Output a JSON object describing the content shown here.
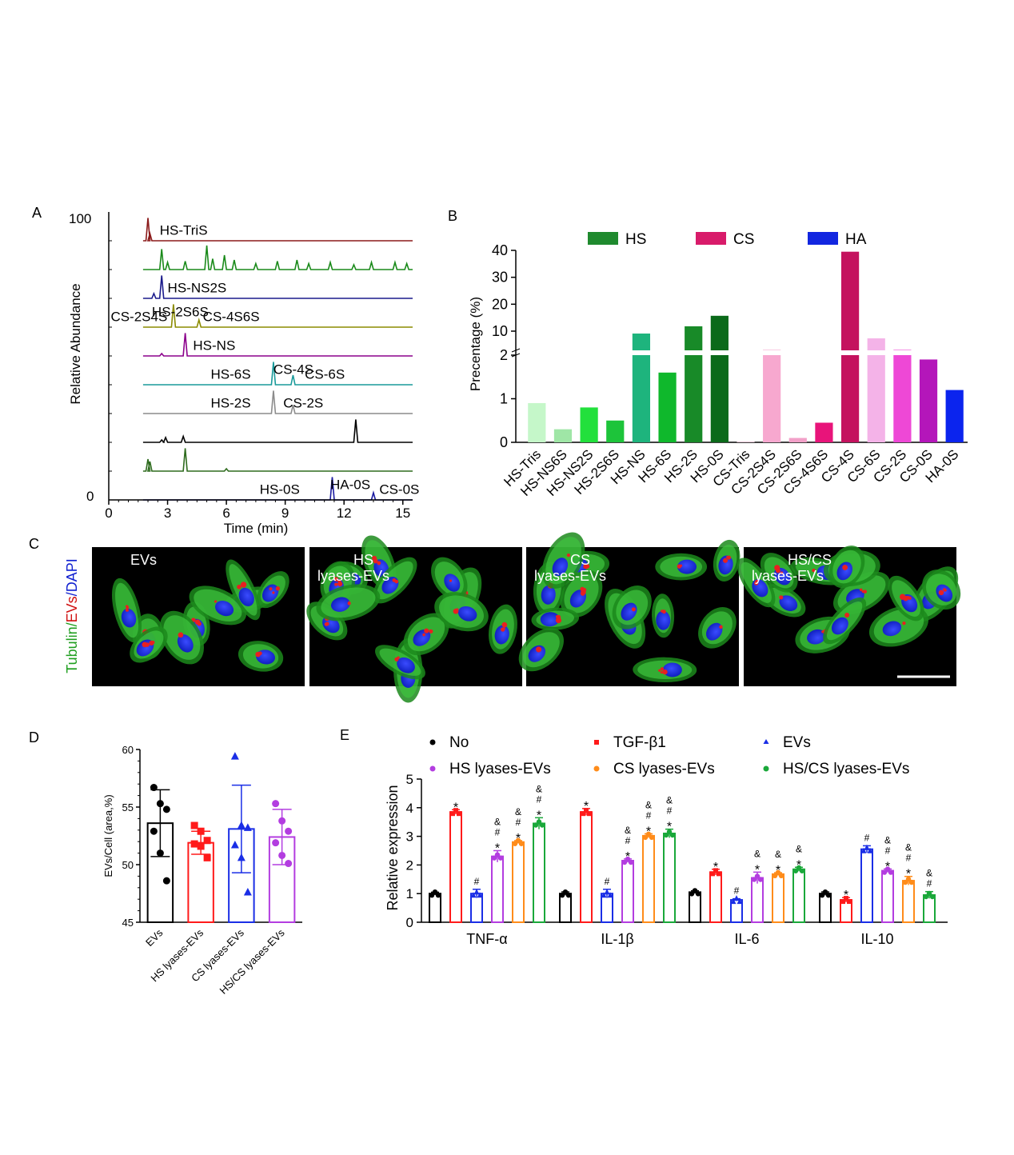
{
  "panels": {
    "A": {
      "label": "A",
      "chart_data": {
        "type": "line",
        "title": "",
        "xlabel": "Time (min)",
        "ylabel": "Relative Abundance",
        "xlim": [
          0,
          15.5
        ],
        "x_ticks": [
          "0",
          "3",
          "6",
          "9",
          "12",
          "15"
        ],
        "y_ticks": [
          "100",
          "0"
        ],
        "traces": [
          {
            "color": "#8b1a1a",
            "peaks": [
              {
                "x": 2.0,
                "h": 0.95
              },
              {
                "x": 2.1,
                "h": 0.3
              }
            ],
            "labels": [
              {
                "text": "HS-TriS",
                "x": 2.6,
                "pos": "right"
              }
            ]
          },
          {
            "color": "#1a8a1a",
            "peaks": [
              {
                "x": 2.7,
                "h": 0.85
              },
              {
                "x": 3.0,
                "h": 0.3
              },
              {
                "x": 3.9,
                "h": 0.35
              },
              {
                "x": 5.0,
                "h": 1.0
              },
              {
                "x": 5.3,
                "h": 0.45
              },
              {
                "x": 5.9,
                "h": 0.6
              },
              {
                "x": 6.4,
                "h": 0.4
              },
              {
                "x": 7.5,
                "h": 0.25
              },
              {
                "x": 8.6,
                "h": 0.35
              },
              {
                "x": 9.6,
                "h": 0.4
              },
              {
                "x": 10.2,
                "h": 0.25
              },
              {
                "x": 11.3,
                "h": 0.3
              },
              {
                "x": 12.5,
                "h": 0.2
              },
              {
                "x": 13.4,
                "h": 0.3
              },
              {
                "x": 14.6,
                "h": 0.3
              },
              {
                "x": 15.2,
                "h": 0.25
              }
            ],
            "labels": []
          },
          {
            "color": "#1a1a8b",
            "peaks": [
              {
                "x": 2.7,
                "h": 0.95
              },
              {
                "x": 2.3,
                "h": 0.2
              }
            ],
            "labels": [
              {
                "text": "HS-NS2S",
                "x": 3.0,
                "pos": "right"
              }
            ]
          },
          {
            "color": "#8b8b00",
            "peaks": [
              {
                "x": 3.3,
                "h": 0.95
              },
              {
                "x": 4.6,
                "h": 0.3
              }
            ],
            "labels": [
              {
                "text": "HS-2S6S",
                "x": 2.2,
                "pos": "above"
              },
              {
                "text": "CS-2S4S",
                "x": 0.1,
                "pos": "right"
              },
              {
                "text": "CS-4S6S",
                "x": 4.8,
                "pos": "right"
              }
            ]
          },
          {
            "color": "#8b008b",
            "peaks": [
              {
                "x": 3.9,
                "h": 0.95
              },
              {
                "x": 2.7,
                "h": 0.1
              }
            ],
            "labels": [
              {
                "text": "HS-NS",
                "x": 4.3,
                "pos": "right"
              }
            ]
          },
          {
            "color": "#1a9a9a",
            "peaks": [
              {
                "x": 8.4,
                "h": 0.95
              },
              {
                "x": 9.4,
                "h": 0.4
              }
            ],
            "labels": [
              {
                "text": "CS-4S",
                "x": 8.4,
                "pos": "above"
              },
              {
                "text": "HS-6S",
                "x": 5.2,
                "pos": "right"
              },
              {
                "text": "CS-6S",
                "x": 10.0,
                "pos": "right"
              }
            ]
          },
          {
            "color": "#8c8c8c",
            "peaks": [
              {
                "x": 8.4,
                "h": 0.95
              },
              {
                "x": 9.4,
                "h": 0.35
              }
            ],
            "labels": [
              {
                "text": "HS-2S",
                "x": 5.2,
                "pos": "right"
              },
              {
                "text": "CS-2S",
                "x": 8.9,
                "pos": "right"
              }
            ]
          },
          {
            "color": "#000000",
            "peaks": [
              {
                "x": 2.7,
                "h": 0.1
              },
              {
                "x": 2.9,
                "h": 0.2
              },
              {
                "x": 3.8,
                "h": 0.25
              },
              {
                "x": 12.6,
                "h": 0.95
              }
            ],
            "labels": []
          },
          {
            "color": "#2e6b1e",
            "peaks": [
              {
                "x": 2.0,
                "h": 0.5
              },
              {
                "x": 2.1,
                "h": 0.4
              },
              {
                "x": 3.9,
                "h": 0.95
              },
              {
                "x": 6.0,
                "h": 0.1
              }
            ],
            "labels": []
          },
          {
            "color": "#1a1aa0",
            "peaks": [
              {
                "x": 11.4,
                "h": 0.95
              },
              {
                "x": 13.5,
                "h": 0.3
              }
            ],
            "labels": [
              {
                "text": "HA-0S",
                "x": 11.3,
                "pos": "above"
              },
              {
                "text": "HS-0S",
                "x": 7.7,
                "pos": "right"
              },
              {
                "text": "CS-0S",
                "x": 13.8,
                "pos": "right"
              }
            ]
          }
        ]
      }
    },
    "B": {
      "label": "B",
      "chart_data": {
        "type": "bar",
        "title": "",
        "xlabel": "",
        "ylabel": "Precentage (%)",
        "y_scale": "broken",
        "y_ticks_lower": [
          "0",
          "1",
          "2"
        ],
        "y_ticks_upper": [
          "10",
          "20",
          "30",
          "40"
        ],
        "legend": [
          {
            "name": "HS",
            "color": "#1f8a2e"
          },
          {
            "name": "CS",
            "color": "#d81b6a"
          },
          {
            "name": "HA",
            "color": "#1226e0"
          }
        ],
        "legend_position": "top",
        "categories": [
          "HS-Tris",
          "HS-NS6S",
          "HS-NS2S",
          "HS-2S6S",
          "HS-NS",
          "HS-6S",
          "HS-2S",
          "HS-0S",
          "CS-Tris",
          "CS-2S4S",
          "CS-2S6S",
          "CS-4S6S",
          "CS-4S",
          "CS-6S",
          "CS-2S",
          "CS-0S",
          "HA-0S"
        ],
        "values": [
          0.9,
          0.3,
          0.8,
          0.5,
          9.0,
          1.6,
          11.8,
          15.7,
          0.02,
          2.2,
          0.1,
          0.45,
          39.5,
          7.0,
          2.2,
          1.9,
          1.2
        ],
        "colors": [
          "#c5f7c9",
          "#9fe6a6",
          "#22e03c",
          "#1dc43a",
          "#1eb47d",
          "#0fb82c",
          "#188a28",
          "#0b6a1a",
          "#e6c7d6",
          "#f7a8cf",
          "#f2a0c8",
          "#e8147a",
          "#c4125e",
          "#f4b3e8",
          "#ee48d6",
          "#b416ba",
          "#0b24ee"
        ]
      }
    },
    "C": {
      "label": "C",
      "stain_label": {
        "part1": "Tubulin/",
        "part2": "EVs",
        "part3": "/DAPI"
      },
      "images": [
        {
          "line1": "EVs",
          "line2": ""
        },
        {
          "line1": "HS",
          "line2": "lyases-EVs"
        },
        {
          "line1": "CS",
          "line2": "lyases-EVs"
        },
        {
          "line1": "HS/CS",
          "line2": "lyases-EVs"
        }
      ]
    },
    "D": {
      "label": "D",
      "chart_data": {
        "type": "bar",
        "title": "",
        "xlabel": "",
        "ylabel": "EVs/Cell (area,%)",
        "ylim": [
          45,
          60
        ],
        "y_ticks": [
          "45",
          "50",
          "55",
          "60"
        ],
        "categories": [
          "EVs",
          "HS lyases-EVs",
          "CS lyases-EVs",
          "HS/CS lyases-EVs"
        ],
        "colors": [
          "#000000",
          "#ff1a1a",
          "#1a2ee6",
          "#b33de0"
        ],
        "means": [
          53.6,
          51.9,
          53.1,
          52.4
        ],
        "sd": [
          2.9,
          1.0,
          3.8,
          2.4
        ],
        "points": [
          [
            56.7,
            55.3,
            54.8,
            52.9,
            51.0,
            48.6
          ],
          [
            53.4,
            52.9,
            52.1,
            51.8,
            51.6,
            50.6
          ],
          [
            59.4,
            53.4,
            53.2,
            51.7,
            50.6,
            47.6
          ],
          [
            55.3,
            53.8,
            52.9,
            51.9,
            50.8,
            50.1
          ]
        ]
      }
    },
    "E": {
      "label": "E",
      "chart_data": {
        "type": "bar",
        "title": "",
        "xlabel": "",
        "ylabel": "Relative expression",
        "ylim": [
          0,
          5
        ],
        "y_ticks": [
          "0",
          "1",
          "2",
          "3",
          "4",
          "5"
        ],
        "categories": [
          "TNF-α",
          "IL-1β",
          "IL-6",
          "IL-10"
        ],
        "legend_position": "top",
        "series": [
          {
            "name": "No",
            "color": "#000000",
            "marker": "circle",
            "values": [
              1.0,
              1.0,
              1.05,
              1.0
            ],
            "err": [
              0.05,
              0.06,
              0.05,
              0.06
            ],
            "marks": [
              "",
              "",
              "",
              ""
            ]
          },
          {
            "name": "TGF-β1",
            "color": "#ff1a1a",
            "marker": "square",
            "values": [
              3.85,
              3.85,
              1.75,
              0.78
            ],
            "err": [
              0.08,
              0.12,
              0.1,
              0.08
            ],
            "marks": [
              "*",
              "*",
              "*",
              "*"
            ]
          },
          {
            "name": "EVs",
            "color": "#1a2ee6",
            "marker": "triangle",
            "values": [
              1.0,
              1.0,
              0.78,
              2.55
            ],
            "err": [
              0.15,
              0.15,
              0.04,
              0.12
            ],
            "marks": [
              "#",
              "#",
              "#",
              "#"
            ]
          },
          {
            "name": "HS lyases-EVs",
            "color": "#b33de0",
            "marker": "circle",
            "values": [
              2.3,
              2.15,
              1.55,
              1.8
            ],
            "err": [
              0.2,
              0.06,
              0.2,
              0.06
            ],
            "marks": [
              "& # *",
              "& # *",
              "& *",
              "& # *"
            ]
          },
          {
            "name": "CS lyases-EVs",
            "color": "#ff8c1a",
            "marker": "circle",
            "values": [
              2.8,
              3.02,
              1.68,
              1.45
            ],
            "err": [
              0.05,
              0.07,
              0.05,
              0.15
            ],
            "marks": [
              "& # *",
              "& # *",
              "& *",
              "& # *"
            ]
          },
          {
            "name": "HS/CS lyases-EVs",
            "color": "#1aa83a",
            "marker": "circle",
            "values": [
              3.45,
              3.1,
              1.85,
              0.95
            ],
            "err": [
              0.2,
              0.15,
              0.07,
              0.12
            ],
            "marks": [
              "& # *",
              "& # *",
              "& *",
              "& #"
            ]
          }
        ]
      }
    }
  }
}
